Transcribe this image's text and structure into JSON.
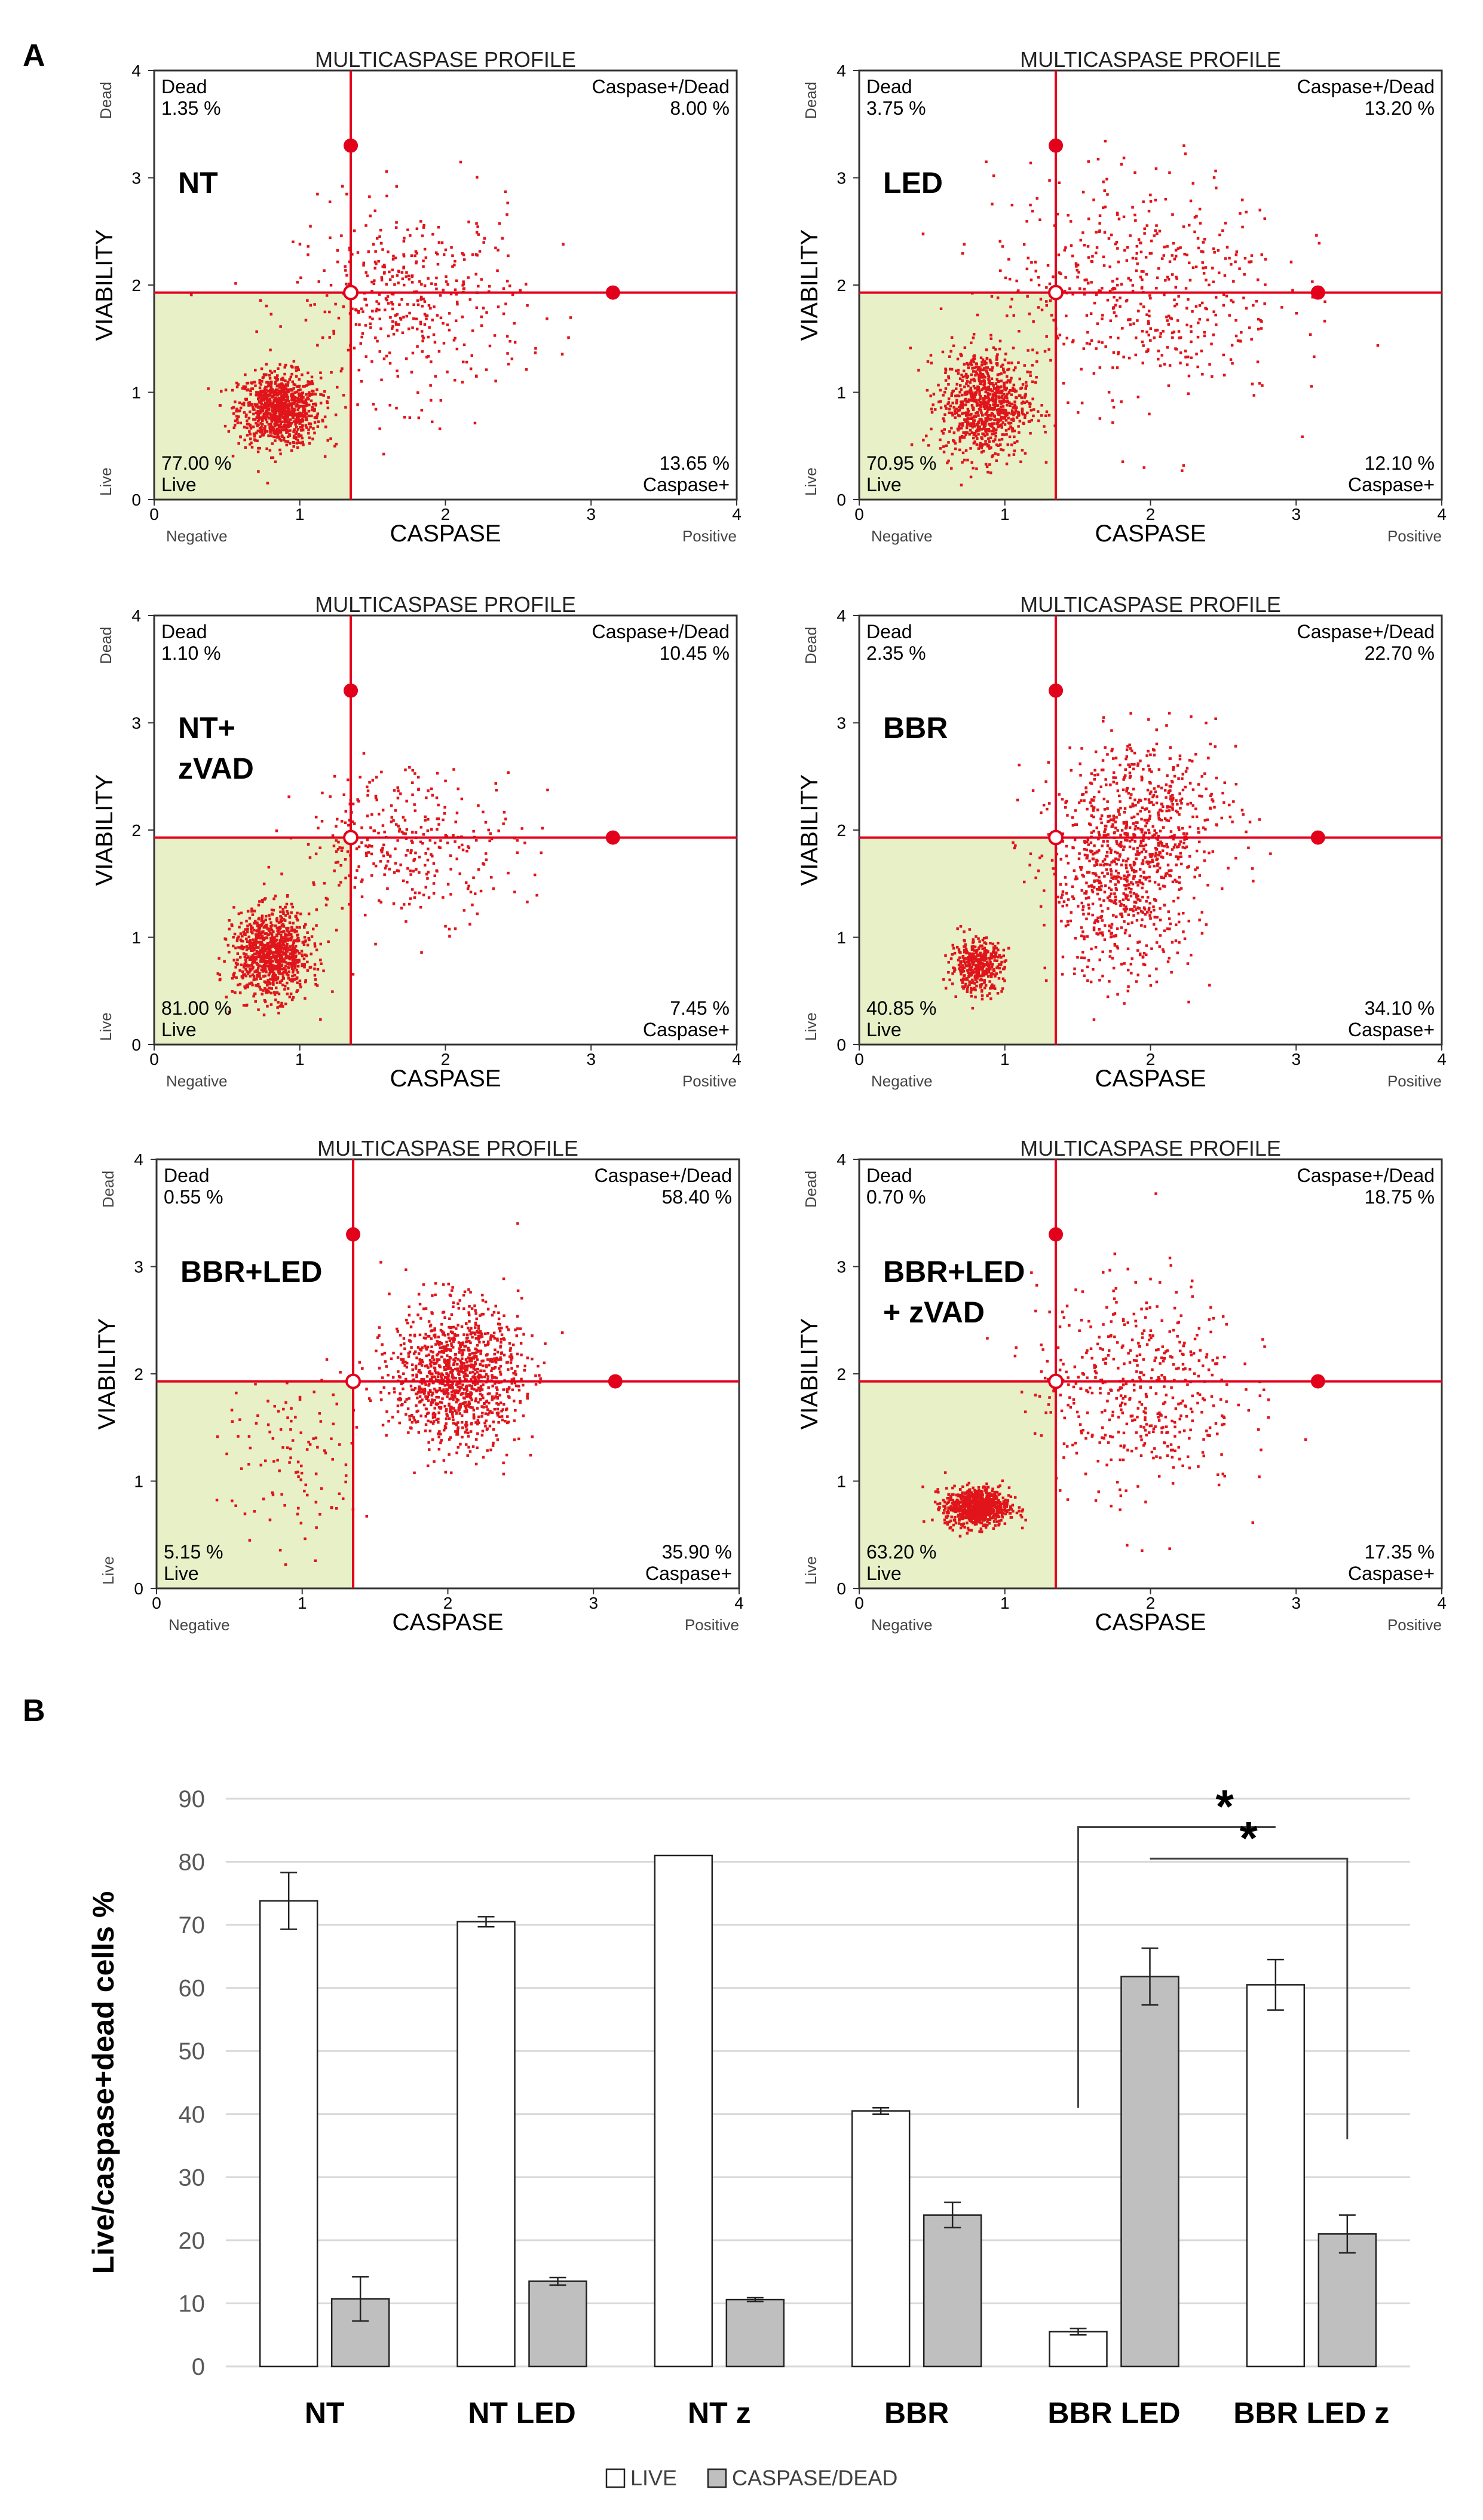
{
  "panels": {
    "a": "A",
    "b": "B"
  },
  "colors": {
    "gate": "#e3001b",
    "live_fill": "#e8f0c7",
    "dot": "#e0141a",
    "live_bar": "#ffffff",
    "caspase_bar": "#bfbfbf",
    "grid": "#d9d9d9"
  },
  "flow": {
    "title": "MULTICASPASE PROFILE",
    "xlabel": "CASPASE",
    "ylabel": "VIABILITY",
    "x_neg": "Negative",
    "x_pos": "Positive",
    "y_live": "Live",
    "y_dead": "Dead",
    "q_dead": "Dead",
    "q_casdead": "Caspase+/Dead",
    "q_live": "Live",
    "q_cas": "Caspase+",
    "ticks": [
      "0",
      "1",
      "2",
      "3",
      "4"
    ],
    "gate_x": 1.35,
    "gate_y": 1.93
  },
  "chart_data": [
    {
      "type": "scatter",
      "label": [
        "NT"
      ],
      "dead": "1.35 %",
      "casdead": "8.00 %",
      "live": "77.00 %",
      "cas": "13.65 %",
      "clusters": [
        {
          "cx": 0.85,
          "cy": 0.85,
          "sx": 0.14,
          "sy": 0.17,
          "n": 900
        },
        {
          "cx": 1.75,
          "cy": 1.85,
          "sx": 0.4,
          "sy": 0.45,
          "n": 420
        }
      ]
    },
    {
      "type": "scatter",
      "label": [
        "LED"
      ],
      "dead": "3.75 %",
      "casdead": "13.20 %",
      "live": "70.95 %",
      "cas": "12.10 %",
      "clusters": [
        {
          "cx": 0.85,
          "cy": 0.9,
          "sx": 0.15,
          "sy": 0.25,
          "n": 850
        },
        {
          "cx": 1.9,
          "cy": 2.0,
          "sx": 0.5,
          "sy": 0.55,
          "n": 520
        }
      ]
    },
    {
      "type": "scatter",
      "label": [
        "NT+",
        "zVAD"
      ],
      "dead": "1.10 %",
      "casdead": "10.45 %",
      "live": "81.00 %",
      "cas": "7.45 %",
      "clusters": [
        {
          "cx": 0.8,
          "cy": 0.85,
          "sx": 0.13,
          "sy": 0.2,
          "n": 950
        },
        {
          "cx": 1.75,
          "cy": 1.9,
          "sx": 0.38,
          "sy": 0.35,
          "n": 330
        }
      ]
    },
    {
      "type": "scatter",
      "label": [
        "BBR"
      ],
      "dead": "2.35 %",
      "casdead": "22.70 %",
      "live": "40.85 %",
      "cas": "34.10 %",
      "clusters": [
        {
          "cx": 0.8,
          "cy": 0.75,
          "sx": 0.09,
          "sy": 0.12,
          "n": 420
        },
        {
          "cx": 1.8,
          "cy": 1.5,
          "sx": 0.25,
          "sy": 0.45,
          "n": 650
        },
        {
          "cx": 2.0,
          "cy": 2.2,
          "sx": 0.3,
          "sy": 0.35,
          "n": 380
        }
      ]
    },
    {
      "type": "scatter",
      "label": [
        "BBR+LED"
      ],
      "dead": "0.55 %",
      "casdead": "58.40 %",
      "live": "5.15 %",
      "cas": "35.90 %",
      "clusters": [
        {
          "cx": 2.05,
          "cy": 2.0,
          "sx": 0.22,
          "sy": 0.33,
          "n": 1100
        },
        {
          "cx": 0.95,
          "cy": 1.2,
          "sx": 0.25,
          "sy": 0.4,
          "n": 110
        }
      ]
    },
    {
      "type": "scatter",
      "label": [
        "BBR+LED",
        "+ zVAD"
      ],
      "dead": "0.70 %",
      "casdead": "18.75 %",
      "live": "63.20 %",
      "cas": "17.35 %",
      "clusters": [
        {
          "cx": 0.8,
          "cy": 0.77,
          "sx": 0.11,
          "sy": 0.09,
          "n": 780
        },
        {
          "cx": 1.9,
          "cy": 1.9,
          "sx": 0.35,
          "sy": 0.5,
          "n": 480
        }
      ]
    },
    {
      "type": "bar",
      "categories": [
        "NT",
        "NT LED",
        "NT z",
        "BBR",
        "BBR LED",
        "BBR LED z"
      ],
      "ylabel": "Live/caspase+dead cells %",
      "ylim": [
        0,
        90
      ],
      "yticks": [
        "0",
        "10",
        "20",
        "30",
        "40",
        "50",
        "60",
        "70",
        "80",
        "90"
      ],
      "series": [
        {
          "name": "LIVE",
          "values": [
            73.8,
            70.5,
            81.0,
            40.5,
            5.5,
            60.5
          ],
          "errors": [
            4.5,
            0.8,
            0,
            0.5,
            0.5,
            4.0
          ]
        },
        {
          "name": "CASPASE/DEAD",
          "values": [
            10.7,
            13.5,
            10.6,
            24.0,
            61.8,
            21.0
          ],
          "errors": [
            3.5,
            0.6,
            0.3,
            2.0,
            4.5,
            3.0
          ]
        }
      ],
      "significance": [
        "*",
        "*"
      ]
    }
  ]
}
